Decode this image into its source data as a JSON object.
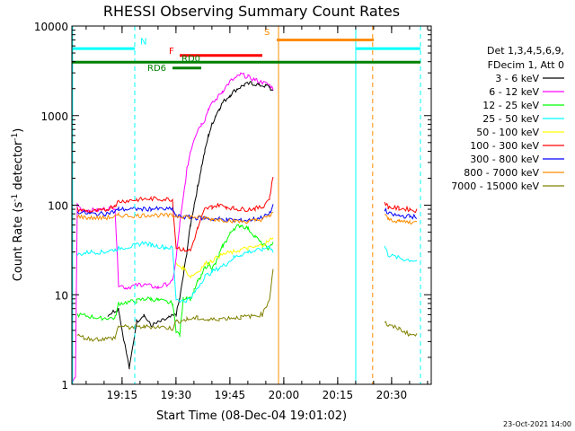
{
  "chart_data": {
    "type": "line",
    "title": "RHESSI Observing Summary Count Rates",
    "xlabel": "Start Time (08-Dec-04 19:01:02)",
    "ylabel": "Count Rate (s⁻¹ detector⁻¹)",
    "ylabel_parts": [
      "Count Rate (s",
      "-1",
      " detector",
      "-1",
      ")"
    ],
    "y_scale": "log",
    "ylim": [
      1,
      10000
    ],
    "xlim_minutes": [
      0,
      100
    ],
    "x_ticks": [
      {
        "minute": 13.97,
        "label": "19:15"
      },
      {
        "minute": 28.97,
        "label": "19:30"
      },
      {
        "minute": 43.97,
        "label": "19:45"
      },
      {
        "minute": 58.97,
        "label": "20:00"
      },
      {
        "minute": 73.97,
        "label": "20:15"
      },
      {
        "minute": 88.97,
        "label": "20:30"
      }
    ],
    "y_ticks": [
      {
        "value": 1,
        "label": "1"
      },
      {
        "value": 10,
        "label": "10"
      },
      {
        "value": 100,
        "label": "100"
      },
      {
        "value": 1000,
        "label": "1000"
      },
      {
        "value": 10000,
        "label": "10000"
      }
    ],
    "legend": {
      "placement": "right",
      "header": [
        "Det 1,3,4,5,6,9,",
        "FDecim 1, Att 0"
      ]
    },
    "series": [
      {
        "name": "3 - 6 keV",
        "color": "#000000",
        "points": [
          [
            10,
            6
          ],
          [
            13,
            7
          ],
          [
            14,
            4
          ],
          [
            16,
            1.5
          ],
          [
            18,
            5
          ],
          [
            20,
            6
          ],
          [
            22,
            4.5
          ],
          [
            27,
            5.5
          ],
          [
            29,
            6
          ],
          [
            30,
            9
          ],
          [
            31,
            16
          ],
          [
            32,
            30
          ],
          [
            33,
            60
          ],
          [
            34,
            100
          ],
          [
            35,
            160
          ],
          [
            36,
            260
          ],
          [
            37,
            400
          ],
          [
            38,
            600
          ],
          [
            39,
            800
          ],
          [
            40,
            1000
          ],
          [
            41,
            1200
          ],
          [
            42,
            1400
          ],
          [
            44,
            1700
          ],
          [
            46,
            2000
          ],
          [
            48,
            2200
          ],
          [
            50,
            2300
          ],
          [
            52,
            2200
          ],
          [
            54,
            2150
          ],
          [
            55,
            2100
          ],
          [
            56,
            1800
          ]
        ]
      },
      {
        "name": "6 - 12 keV",
        "color": "#ff00ff",
        "points": [
          [
            0,
            1
          ],
          [
            1,
            1.2
          ],
          [
            1.5,
            100
          ],
          [
            3,
            88
          ],
          [
            7,
            88
          ],
          [
            12,
            95
          ],
          [
            13,
            13
          ],
          [
            15,
            12
          ],
          [
            19,
            13
          ],
          [
            20,
            13
          ],
          [
            24,
            12
          ],
          [
            28,
            14
          ],
          [
            29,
            25
          ],
          [
            30,
            60
          ],
          [
            31,
            120
          ],
          [
            32,
            250
          ],
          [
            33,
            400
          ],
          [
            34,
            550
          ],
          [
            35,
            700
          ],
          [
            36,
            800
          ],
          [
            37,
            900
          ],
          [
            38,
            1200
          ],
          [
            40,
            1500
          ],
          [
            42,
            1900
          ],
          [
            44,
            2400
          ],
          [
            46,
            2700
          ],
          [
            47,
            2900
          ],
          [
            49,
            2700
          ],
          [
            51,
            2500
          ],
          [
            53,
            2350
          ],
          [
            55,
            2200
          ],
          [
            56,
            2000
          ]
        ]
      },
      {
        "name": "12 - 25 keV",
        "color": "#00ff00",
        "points": [
          [
            1.5,
            6
          ],
          [
            8,
            5.5
          ],
          [
            12,
            5.5
          ],
          [
            13,
            8
          ],
          [
            18,
            8.5
          ],
          [
            20,
            9
          ],
          [
            22,
            9
          ],
          [
            24,
            8.7
          ],
          [
            28,
            8
          ],
          [
            29,
            4
          ],
          [
            30,
            3.5
          ],
          [
            31,
            9
          ],
          [
            32,
            9.5
          ],
          [
            33,
            9
          ],
          [
            34,
            11
          ],
          [
            35,
            14
          ],
          [
            36,
            16
          ],
          [
            37,
            20
          ],
          [
            38,
            22
          ],
          [
            39,
            20
          ],
          [
            40,
            22
          ],
          [
            41,
            28
          ],
          [
            42,
            35
          ],
          [
            43,
            40
          ],
          [
            44,
            48
          ],
          [
            45,
            55
          ],
          [
            46,
            58
          ],
          [
            47,
            60
          ],
          [
            49,
            55
          ],
          [
            51,
            45
          ],
          [
            53,
            36
          ],
          [
            55,
            33
          ],
          [
            56,
            40
          ]
        ]
      },
      {
        "name": "25 - 50 keV",
        "color": "#00ffff",
        "points": [
          [
            1.5,
            28
          ],
          [
            5,
            30
          ],
          [
            9,
            30
          ],
          [
            12,
            32
          ],
          [
            13,
            33
          ],
          [
            17,
            35
          ],
          [
            20,
            38
          ],
          [
            22,
            36
          ],
          [
            26,
            34
          ],
          [
            28,
            33
          ],
          [
            29,
            9
          ],
          [
            31,
            8.5
          ],
          [
            33,
            9
          ],
          [
            35,
            12
          ],
          [
            37,
            16
          ],
          [
            39,
            18
          ],
          [
            41,
            20
          ],
          [
            43,
            22
          ],
          [
            45,
            26
          ],
          [
            47,
            28
          ],
          [
            49,
            30
          ],
          [
            51,
            31
          ],
          [
            53,
            32
          ],
          [
            55,
            35
          ],
          [
            56,
            30
          ],
          [
            87,
            35
          ],
          [
            88,
            28
          ],
          [
            92,
            25
          ],
          [
            96,
            24
          ]
        ]
      },
      {
        "name": "50 - 100 keV",
        "color": "#ffff00",
        "points": [
          [
            29,
            22
          ],
          [
            31,
            20
          ],
          [
            33,
            16
          ],
          [
            35,
            18
          ],
          [
            37,
            22
          ],
          [
            39,
            24
          ],
          [
            41,
            27
          ],
          [
            43,
            29
          ],
          [
            45,
            30
          ],
          [
            47,
            32
          ],
          [
            49,
            33
          ],
          [
            51,
            34
          ],
          [
            53,
            36
          ],
          [
            55,
            40
          ],
          [
            56,
            45
          ]
        ]
      },
      {
        "name": "100 - 300 keV",
        "color": "#ff0000",
        "points": [
          [
            1.5,
            90
          ],
          [
            5,
            85
          ],
          [
            9,
            87
          ],
          [
            12,
            100
          ],
          [
            13,
            110
          ],
          [
            18,
            115
          ],
          [
            22,
            118
          ],
          [
            28,
            116
          ],
          [
            29,
            34
          ],
          [
            31,
            32
          ],
          [
            33,
            31
          ],
          [
            35,
            55
          ],
          [
            37,
            90
          ],
          [
            39,
            96
          ],
          [
            41,
            100
          ],
          [
            43,
            96
          ],
          [
            45,
            92
          ],
          [
            47,
            90
          ],
          [
            49,
            90
          ],
          [
            51,
            92
          ],
          [
            53,
            95
          ],
          [
            55,
            120
          ],
          [
            56,
            210
          ],
          [
            87,
            110
          ],
          [
            88,
            95
          ],
          [
            91,
            92
          ],
          [
            94,
            90
          ],
          [
            96,
            87
          ]
        ]
      },
      {
        "name": "300 - 800 keV",
        "color": "#0000ff",
        "points": [
          [
            1.5,
            85
          ],
          [
            5,
            80
          ],
          [
            9,
            80
          ],
          [
            12,
            85
          ],
          [
            13,
            90
          ],
          [
            18,
            90
          ],
          [
            22,
            91
          ],
          [
            28,
            90
          ],
          [
            29,
            75
          ],
          [
            31,
            74
          ],
          [
            33,
            73
          ],
          [
            35,
            72
          ],
          [
            37,
            72
          ],
          [
            39,
            70
          ],
          [
            41,
            70
          ],
          [
            43,
            69
          ],
          [
            45,
            68
          ],
          [
            47,
            68
          ],
          [
            49,
            68
          ],
          [
            51,
            70
          ],
          [
            53,
            73
          ],
          [
            55,
            80
          ],
          [
            56,
            100
          ],
          [
            87,
            90
          ],
          [
            88,
            80
          ],
          [
            91,
            76
          ],
          [
            94,
            75
          ],
          [
            96,
            74
          ]
        ]
      },
      {
        "name": "800 - 7000 keV",
        "color": "#ff8c00",
        "points": [
          [
            1.5,
            75
          ],
          [
            5,
            72
          ],
          [
            9,
            72
          ],
          [
            12,
            74
          ],
          [
            13,
            77
          ],
          [
            18,
            76
          ],
          [
            22,
            78
          ],
          [
            28,
            76
          ],
          [
            31,
            75
          ],
          [
            33,
            74
          ],
          [
            35,
            73
          ],
          [
            37,
            72
          ],
          [
            39,
            70
          ],
          [
            41,
            69
          ],
          [
            43,
            68
          ],
          [
            45,
            67
          ],
          [
            47,
            66
          ],
          [
            49,
            66
          ],
          [
            51,
            67
          ],
          [
            53,
            70
          ],
          [
            55,
            75
          ],
          [
            56,
            85
          ],
          [
            87,
            78
          ],
          [
            88,
            70
          ],
          [
            91,
            66
          ],
          [
            94,
            65
          ],
          [
            96,
            64
          ]
        ]
      },
      {
        "name": "7000 - 15000 keV",
        "color": "#808000",
        "points": [
          [
            1.5,
            3.5
          ],
          [
            5,
            3.2
          ],
          [
            9,
            3.2
          ],
          [
            12,
            3.3
          ],
          [
            13,
            4.5
          ],
          [
            16,
            4.3
          ],
          [
            20,
            4.4
          ],
          [
            24,
            4.4
          ],
          [
            28,
            4.2
          ],
          [
            29,
            5
          ],
          [
            32,
            5.3
          ],
          [
            35,
            5.5
          ],
          [
            38,
            5.2
          ],
          [
            41,
            5.4
          ],
          [
            44,
            5.5
          ],
          [
            47,
            5.6
          ],
          [
            50,
            5.8
          ],
          [
            53,
            6
          ],
          [
            55,
            9
          ],
          [
            56,
            20
          ],
          [
            87,
            5
          ],
          [
            88,
            4.5
          ],
          [
            91,
            4.2
          ],
          [
            94,
            3.6
          ],
          [
            96,
            3.5
          ]
        ]
      }
    ],
    "annotations": [
      {
        "label": "N",
        "color": "#00ffff"
      },
      {
        "label": "F",
        "color": "#ff0000"
      },
      {
        "label": "RD0",
        "color": "#008000"
      },
      {
        "label": "RD6",
        "color": "#008000"
      },
      {
        "label": "S",
        "color": "#ff8c00"
      }
    ],
    "bars": [
      {
        "label_ref": 0,
        "color": "#00ffff",
        "y": 5600,
        "x0": 0,
        "x1": 17.5
      },
      {
        "label_ref": 0,
        "color": "#00ffff",
        "y": 5600,
        "x0": 79,
        "x1": 97
      },
      {
        "label_ref": 1,
        "color": "#ff0000",
        "y": 4700,
        "x0": 30,
        "x1": 53
      },
      {
        "label_ref": 2,
        "color": "#008000",
        "y": 3950,
        "x0": 0,
        "x1": 97
      },
      {
        "label_ref": 3,
        "color": "#008000",
        "y": 3400,
        "x0": 28,
        "x1": 36
      },
      {
        "label_ref": 4,
        "color": "#ff8c00",
        "y": 7000,
        "x0": 57,
        "x1": 84
      }
    ],
    "vlines": [
      {
        "minute": 0.2,
        "color": "#00ffff",
        "dashed": false
      },
      {
        "minute": 17.5,
        "color": "#00ffff",
        "dashed": true
      },
      {
        "minute": 57.5,
        "color": "#ff8c00",
        "dashed": false
      },
      {
        "minute": 79,
        "color": "#00ffff",
        "dashed": false
      },
      {
        "minute": 83.7,
        "color": "#ff8c00",
        "dashed": true
      },
      {
        "minute": 97,
        "color": "#00ffff",
        "dashed": true
      }
    ],
    "timestamp": "23-Oct-2021 14:00"
  }
}
